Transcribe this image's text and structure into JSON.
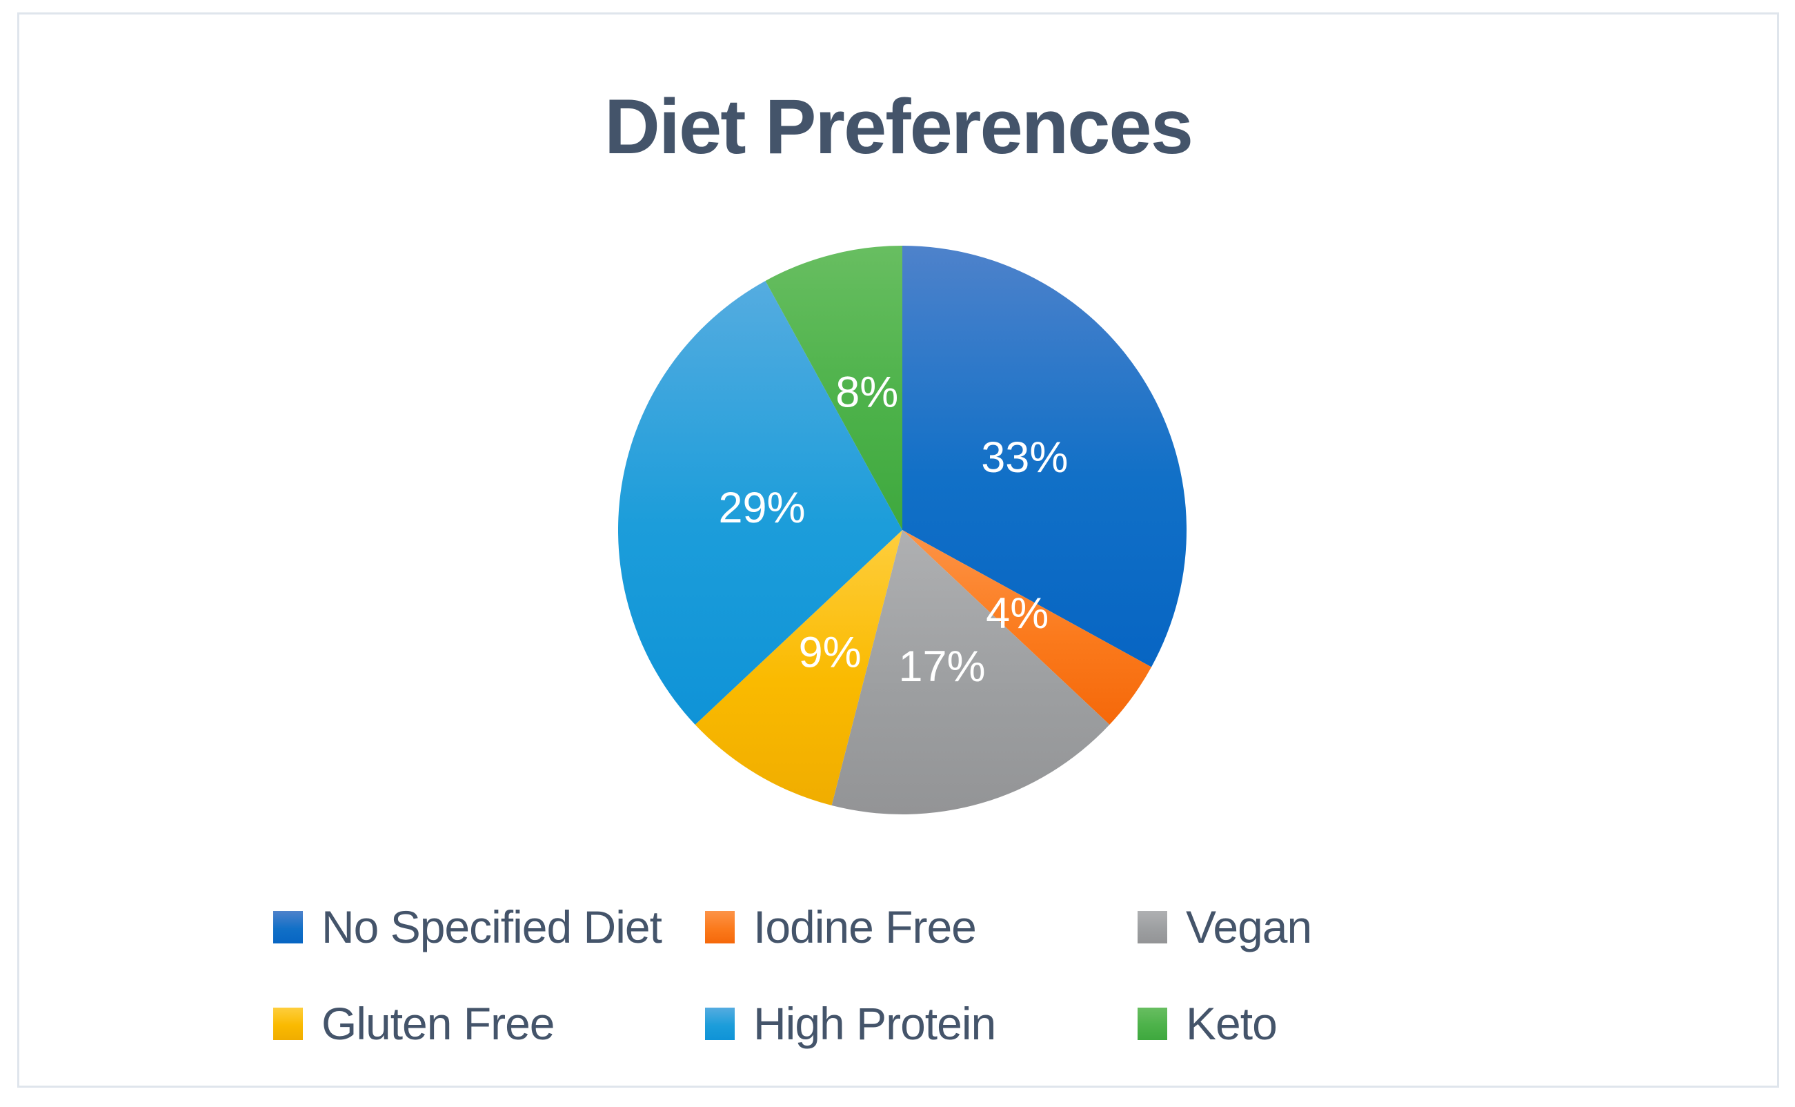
{
  "chart_data": {
    "type": "pie",
    "title": "Diet Preferences",
    "categories": [
      "No Specified Diet",
      "Iodine Free",
      "Vegan",
      "Gluten Free",
      "High Protein",
      "Keto"
    ],
    "values": [
      33,
      4,
      17,
      9,
      29,
      8
    ],
    "labels": [
      "33%",
      "4%",
      "17%",
      "9%",
      "29%",
      "8%"
    ],
    "unit": "percent",
    "start_angle_deg": 0,
    "direction": "clockwise",
    "legend_position": "bottom",
    "legend_rows": 2,
    "legend_columns": 3,
    "colors": [
      {
        "name": "blue",
        "light": "#4E82CB",
        "base": "#1170C7",
        "dark": "#0765C3"
      },
      {
        "name": "orange",
        "light": "#FC9448",
        "base": "#FB7A1C",
        "dark": "#F5680A"
      },
      {
        "name": "gray",
        "light": "#AFB0B2",
        "base": "#9D9FA1",
        "dark": "#939496"
      },
      {
        "name": "yellow",
        "light": "#FECE3D",
        "base": "#FABA00",
        "dark": "#F0AD00"
      },
      {
        "name": "light-blue",
        "light": "#55ACE0",
        "base": "#1C9DDA",
        "dark": "#0F93D7"
      },
      {
        "name": "green",
        "light": "#68BE61",
        "base": "#4DB24A",
        "dark": "#3EA83E"
      }
    ],
    "style": {
      "title_color": "#44546A",
      "legend_text_color": "#44546A",
      "data_label_color": "#FFFFFF",
      "frame_border_color": "#DFE5EC",
      "background_color": "#FFFFFF"
    }
  }
}
